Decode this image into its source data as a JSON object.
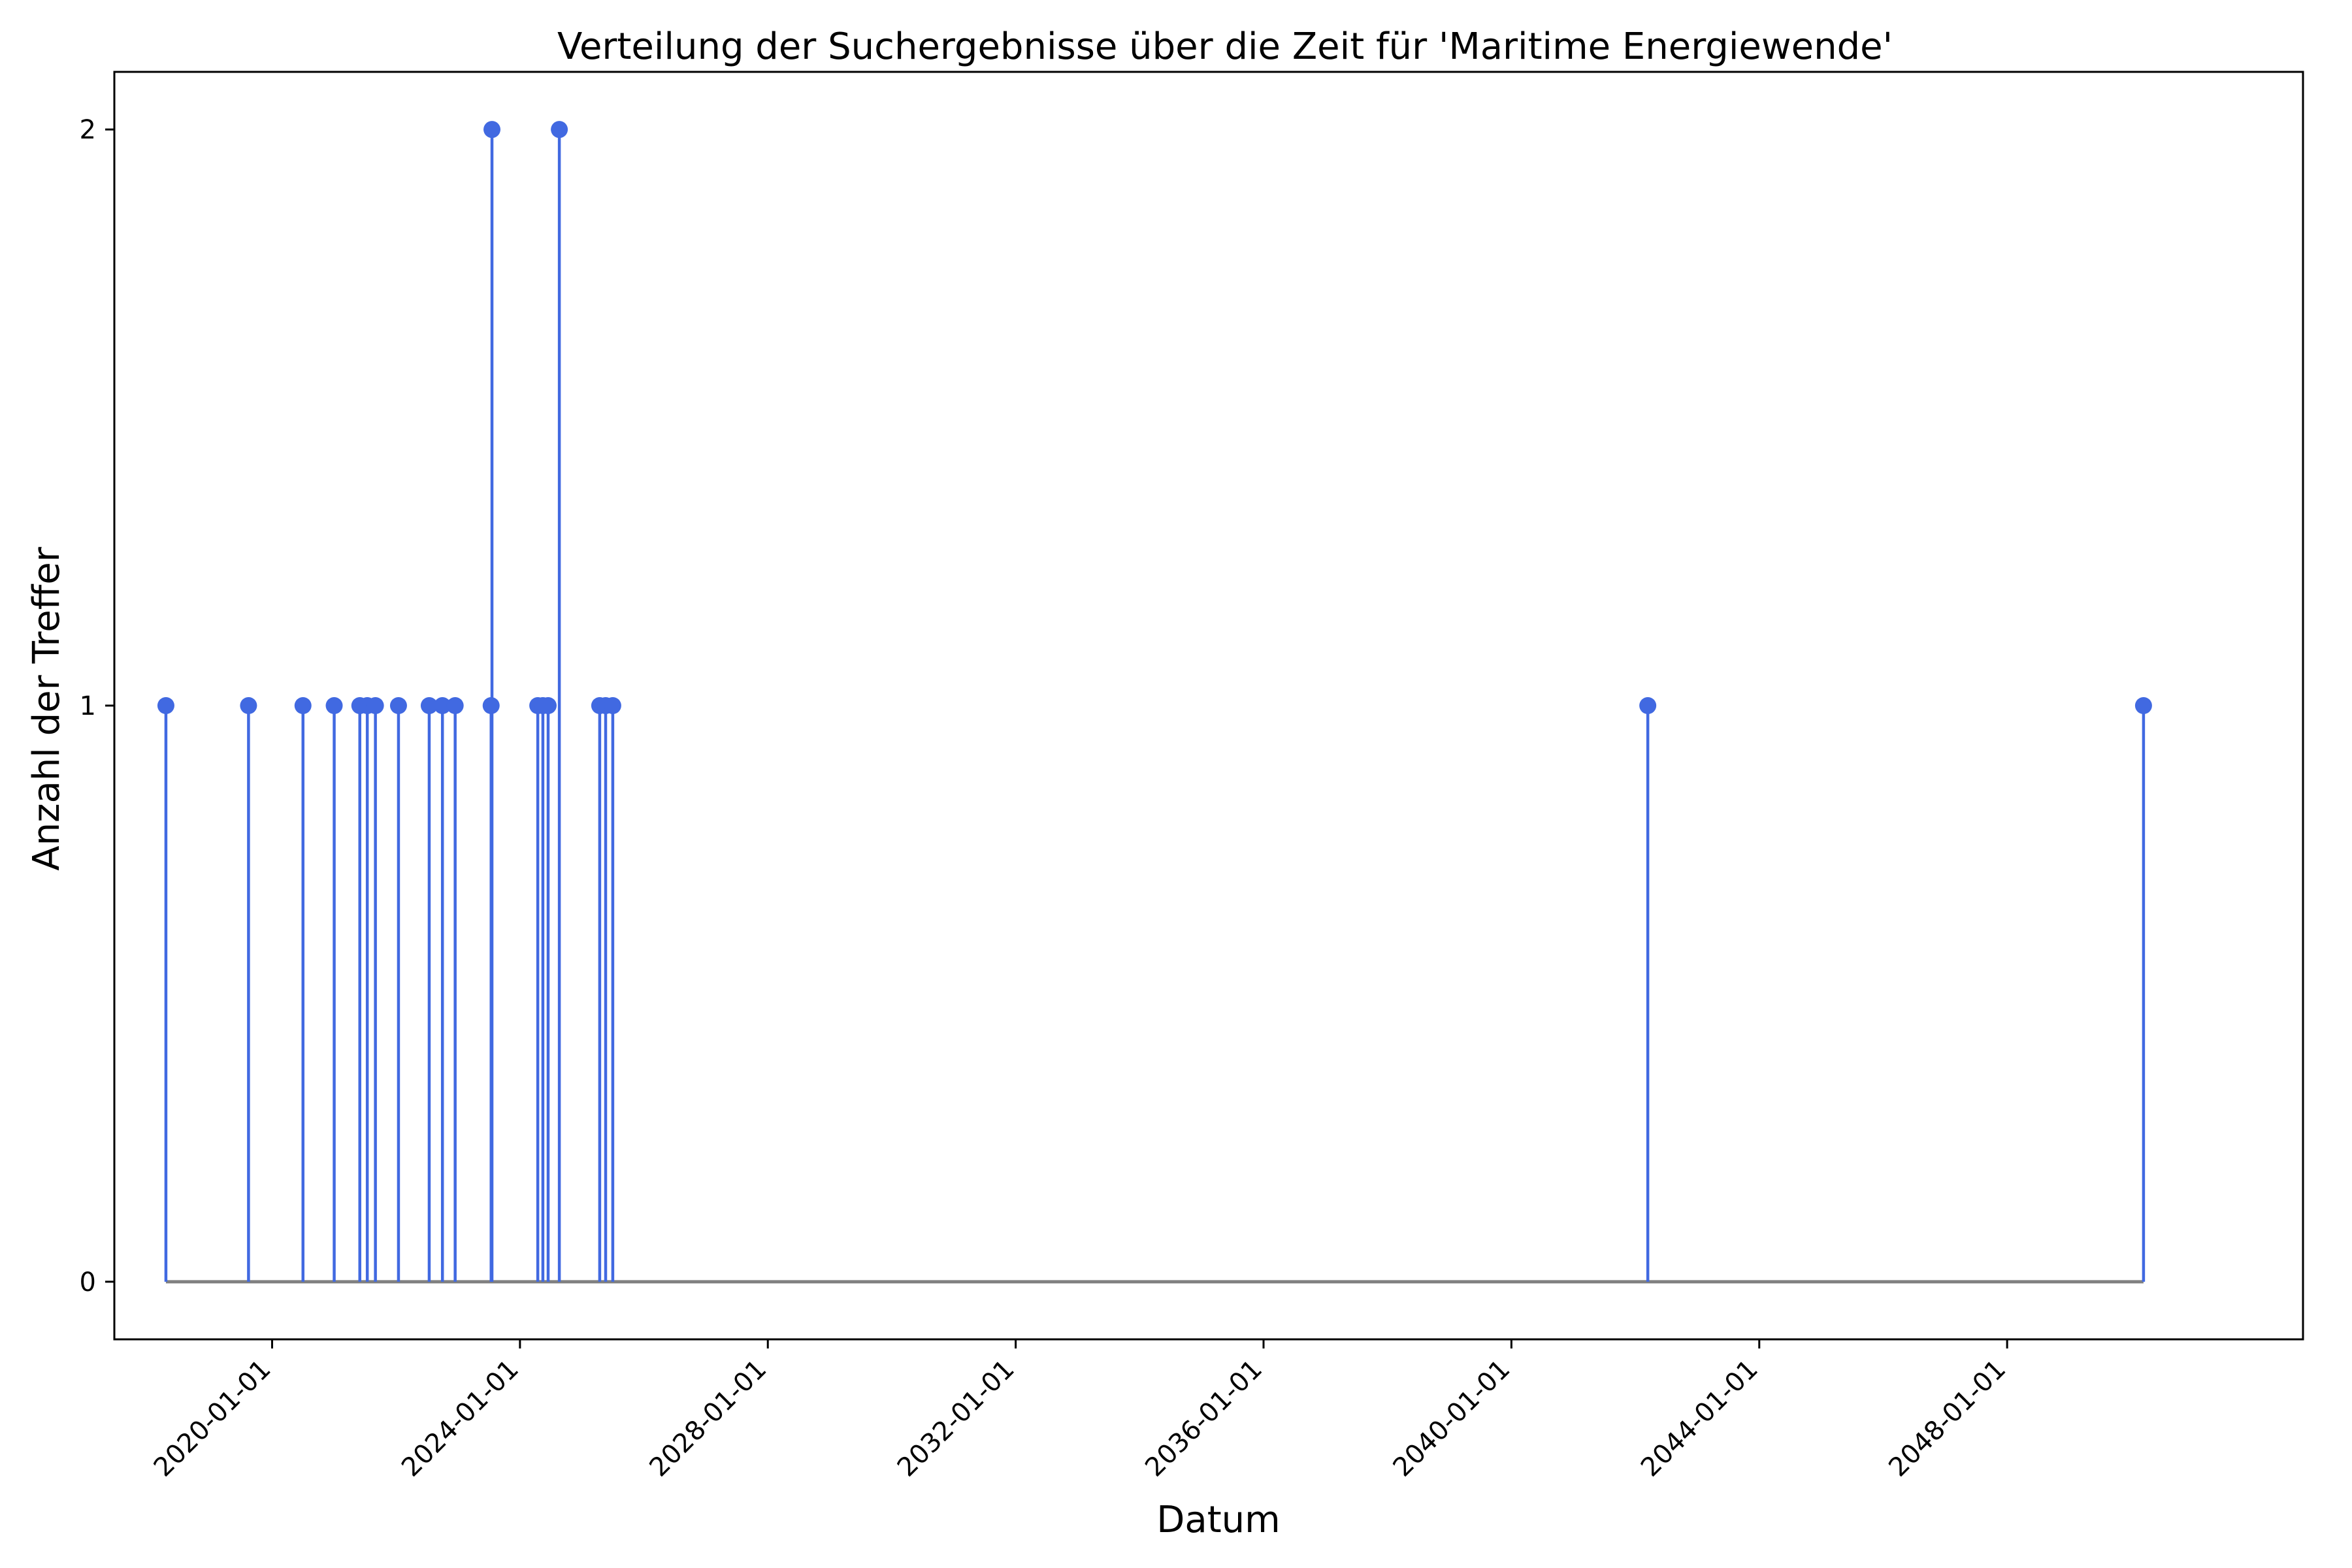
{
  "colors": {
    "stem": "#4169e1",
    "marker": "#4169e1",
    "baseline": "#808080",
    "axis": "#000000",
    "background": "#ffffff"
  },
  "chart_data": {
    "type": "stem",
    "title": "Verteilung der Suchergebnisse über die Zeit für 'Maritime Energiewende'",
    "xlabel": "Datum",
    "ylabel": "Anzahl der Treffer",
    "x_type": "date",
    "xlim": [
      "2017-06-15",
      "2052-10-10"
    ],
    "ylim": [
      -0.1,
      2.1
    ],
    "x_ticks": [
      "2020-01-01",
      "2024-01-01",
      "2028-01-01",
      "2032-01-01",
      "2036-01-01",
      "2040-01-01",
      "2044-01-01",
      "2048-01-01"
    ],
    "y_ticks": [
      0,
      1,
      2
    ],
    "grid": false,
    "legend": false,
    "points": [
      {
        "x": "2018-04-15",
        "y": 1
      },
      {
        "x": "2019-08-15",
        "y": 1
      },
      {
        "x": "2020-07-01",
        "y": 1
      },
      {
        "x": "2021-01-01",
        "y": 1
      },
      {
        "x": "2021-06-01",
        "y": 1
      },
      {
        "x": "2021-07-15",
        "y": 1
      },
      {
        "x": "2021-09-01",
        "y": 1
      },
      {
        "x": "2022-01-15",
        "y": 1
      },
      {
        "x": "2022-07-15",
        "y": 1
      },
      {
        "x": "2022-10-01",
        "y": 1
      },
      {
        "x": "2022-12-15",
        "y": 1
      },
      {
        "x": "2023-07-20",
        "y": 2
      },
      {
        "x": "2023-07-15",
        "y": 1
      },
      {
        "x": "2024-04-15",
        "y": 1
      },
      {
        "x": "2024-05-15",
        "y": 1
      },
      {
        "x": "2024-06-15",
        "y": 1
      },
      {
        "x": "2024-08-20",
        "y": 2
      },
      {
        "x": "2025-04-15",
        "y": 1
      },
      {
        "x": "2025-05-20",
        "y": 1
      },
      {
        "x": "2025-07-01",
        "y": 1
      },
      {
        "x": "2042-03-15",
        "y": 1
      },
      {
        "x": "2050-03-15",
        "y": 1
      }
    ]
  }
}
